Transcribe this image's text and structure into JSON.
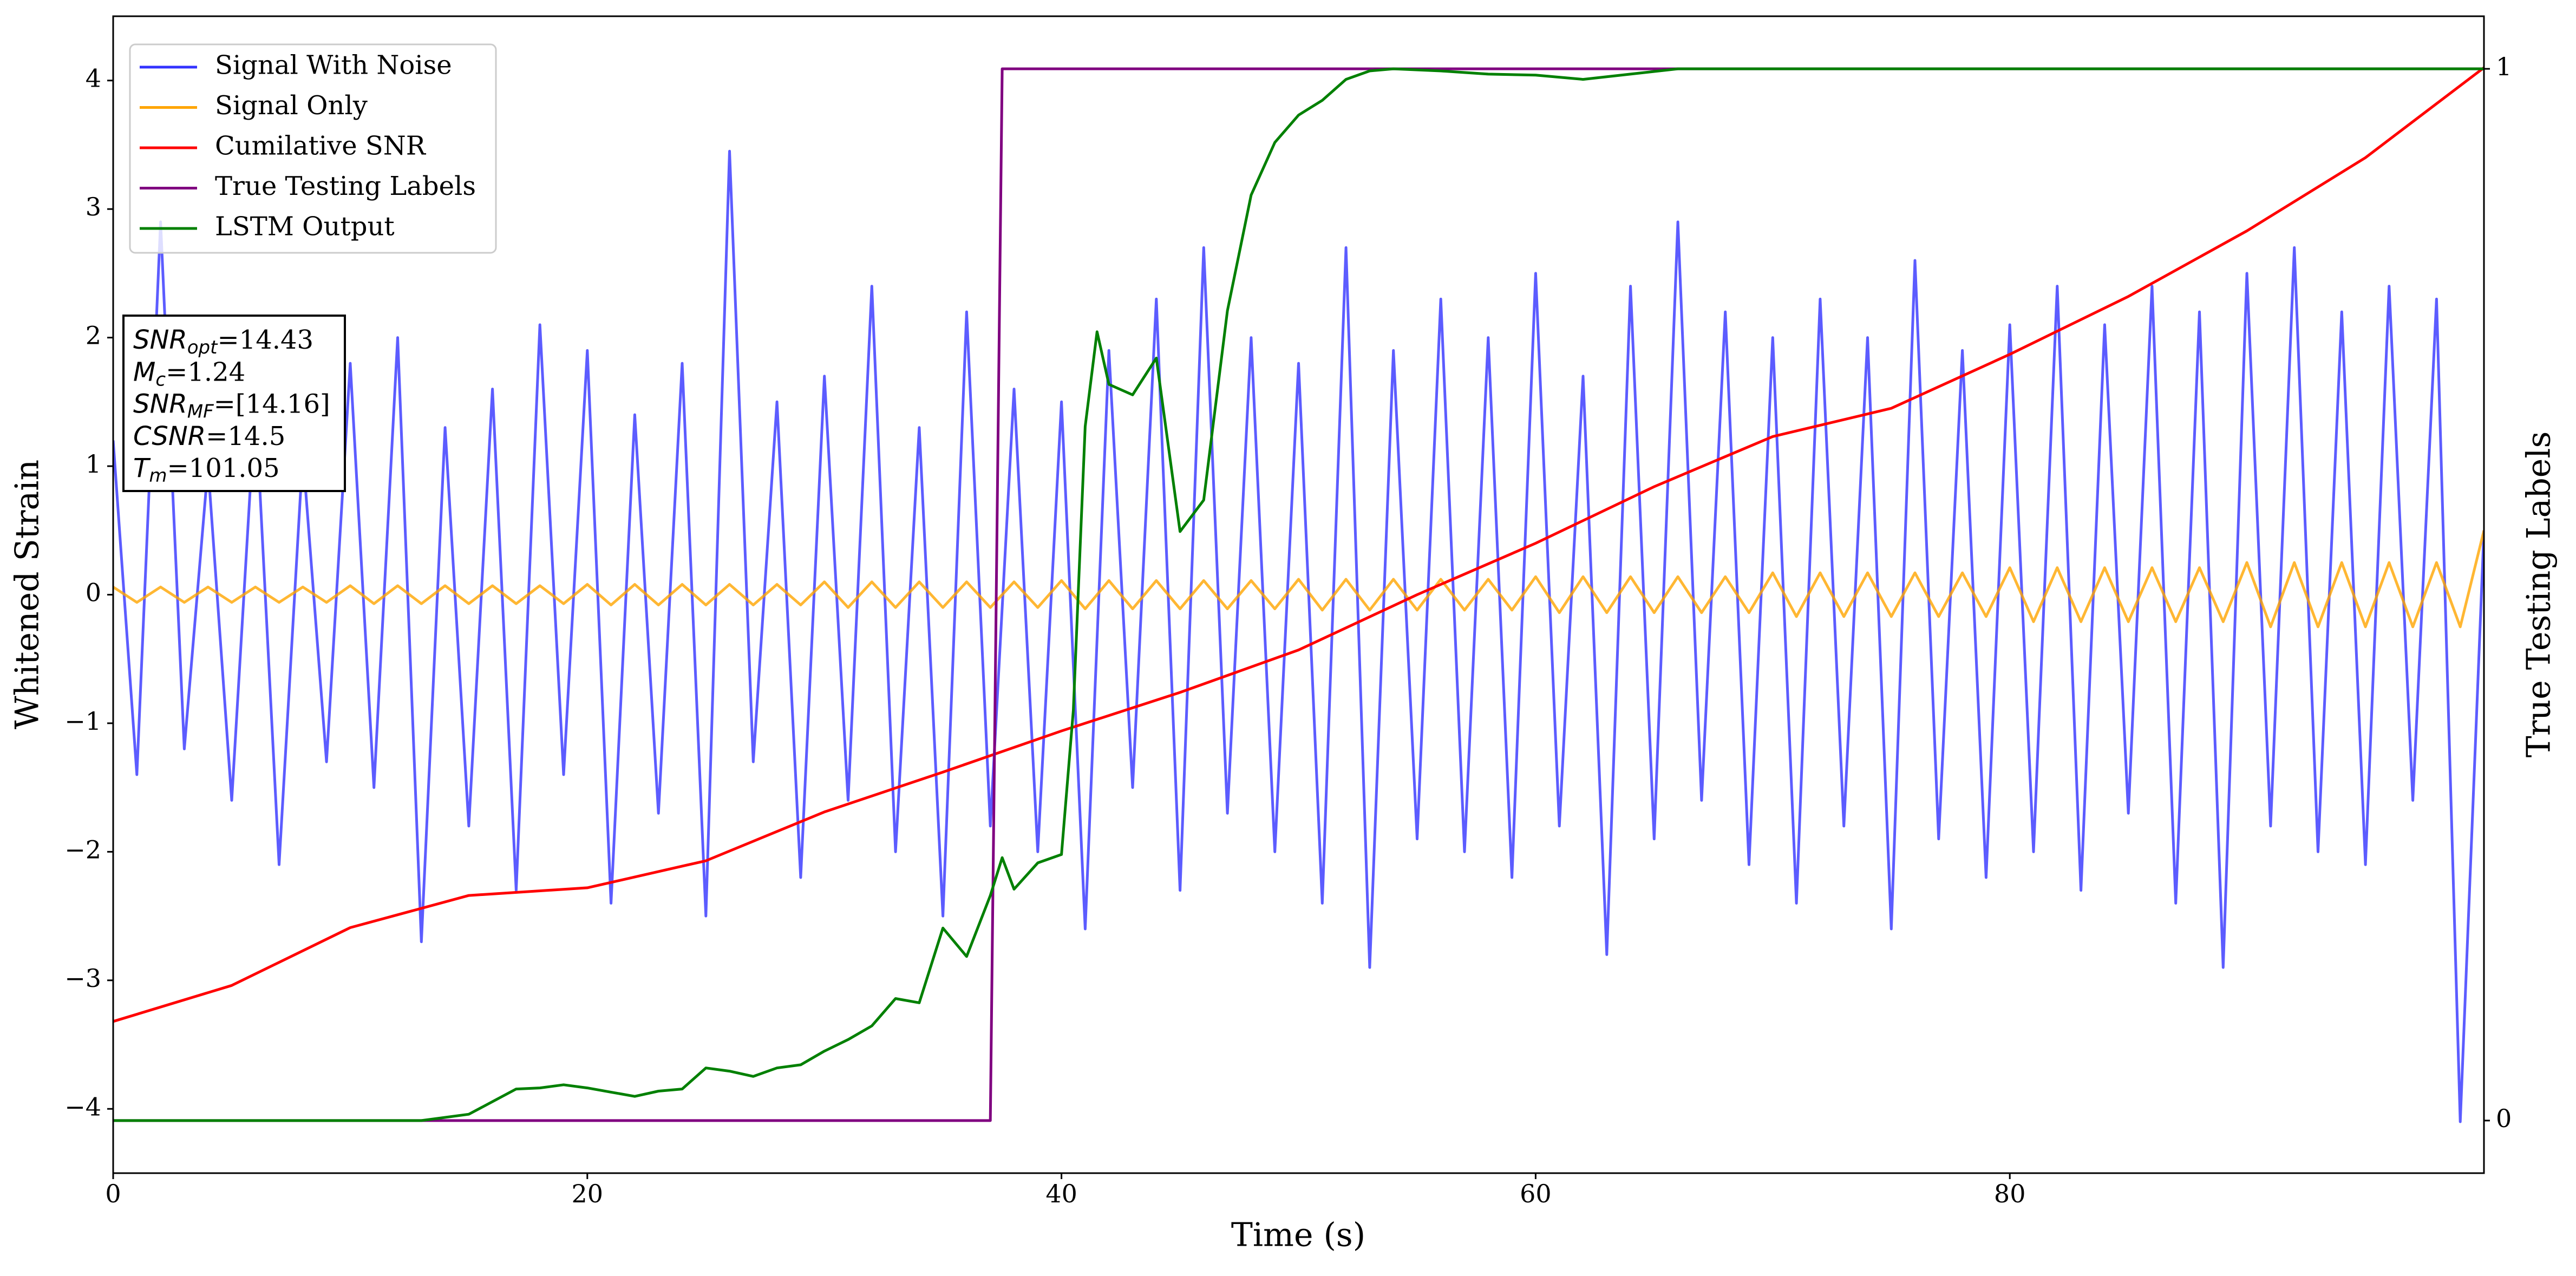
{
  "chart_data": {
    "type": "line",
    "xlabel": "Time (s)",
    "ylabel": "Whitened Strain",
    "y2label": "True Testing Labels",
    "xlim": [
      0,
      100
    ],
    "ylim": [
      -4.5,
      4.5
    ],
    "y2lim": [
      -0.05,
      1.05
    ],
    "xticks": [
      0,
      20,
      40,
      60,
      80
    ],
    "yticks": [
      {
        "value": -4,
        "label": "−4"
      },
      {
        "value": -3,
        "label": "−3"
      },
      {
        "value": -2,
        "label": "−2"
      },
      {
        "value": -1,
        "label": "−1"
      },
      0,
      1,
      2,
      3,
      4
    ],
    "y2ticks": [
      0,
      1
    ],
    "grid": false,
    "legend": "upper left",
    "annotations": [
      {
        "label": "SNR",
        "sub": "opt",
        "text": "=14.43"
      },
      {
        "label": "M",
        "sub": "c",
        "text": "=1.24"
      },
      {
        "label": "SNR",
        "sub": "MF",
        "text": "=[14.16]"
      },
      {
        "label": "CSNR",
        "text": "=14.5"
      },
      {
        "label": "T",
        "sub": "m",
        "text": "=101.05"
      }
    ],
    "series": [
      {
        "name": "Signal With Noise",
        "color": "#3333ff",
        "x": [
          0,
          1,
          2,
          3,
          4,
          5,
          6,
          7,
          8,
          9,
          10,
          11,
          12,
          13,
          14,
          15,
          16,
          17,
          18,
          19,
          20,
          21,
          22,
          23,
          24,
          25,
          26,
          27,
          28,
          29,
          30,
          31,
          32,
          33,
          34,
          35,
          36,
          37,
          38,
          39,
          40,
          41,
          42,
          43,
          44,
          45,
          46,
          47,
          48,
          49,
          50,
          51,
          52,
          53,
          54,
          55,
          56,
          57,
          58,
          59,
          60,
          61,
          62,
          63,
          64,
          65,
          66,
          67,
          68,
          69,
          70,
          71,
          72,
          73,
          74,
          75,
          76,
          77,
          78,
          79,
          80,
          81,
          82,
          83,
          84,
          85,
          86,
          87,
          88,
          89,
          90,
          91,
          92,
          93,
          94,
          95,
          96,
          97,
          98,
          99,
          100
        ],
        "values": [
          1.2,
          -1.4,
          2.9,
          -1.2,
          1.0,
          -1.6,
          1.5,
          -2.1,
          1.1,
          -1.3,
          1.8,
          -1.5,
          2.0,
          -2.7,
          1.3,
          -1.8,
          1.6,
          -2.3,
          2.1,
          -1.4,
          1.9,
          -2.4,
          1.4,
          -1.7,
          1.8,
          -2.5,
          3.45,
          -1.3,
          1.5,
          -2.2,
          1.7,
          -1.6,
          2.4,
          -2.0,
          1.3,
          -2.5,
          2.2,
          -1.8,
          1.6,
          -2.0,
          1.5,
          -2.6,
          1.9,
          -1.5,
          2.3,
          -2.3,
          2.7,
          -1.7,
          2.0,
          -2.0,
          1.8,
          -2.4,
          2.7,
          -2.9,
          1.9,
          -1.9,
          2.3,
          -2.0,
          2.0,
          -2.2,
          2.5,
          -1.8,
          1.7,
          -2.8,
          2.4,
          -1.9,
          2.9,
          -1.6,
          2.2,
          -2.1,
          2.0,
          -2.4,
          2.3,
          -1.8,
          2.0,
          -2.6,
          2.6,
          -1.9,
          1.9,
          -2.2,
          2.1,
          -2.0,
          2.4,
          -2.3,
          2.1,
          -1.7,
          2.4,
          -2.4,
          2.2,
          -2.9,
          2.5,
          -1.8,
          2.7,
          -2.0,
          2.2,
          -2.1,
          2.4,
          -1.6,
          2.3,
          -4.1,
          0.5
        ]
      },
      {
        "name": "Signal Only",
        "color": "#ffa500",
        "x": [
          0,
          1,
          2,
          3,
          4,
          5,
          6,
          7,
          8,
          9,
          10,
          11,
          12,
          13,
          14,
          15,
          16,
          17,
          18,
          19,
          20,
          21,
          22,
          23,
          24,
          25,
          26,
          27,
          28,
          29,
          30,
          31,
          32,
          33,
          34,
          35,
          36,
          37,
          38,
          39,
          40,
          41,
          42,
          43,
          44,
          45,
          46,
          47,
          48,
          49,
          50,
          51,
          52,
          53,
          54,
          55,
          56,
          57,
          58,
          59,
          60,
          61,
          62,
          63,
          64,
          65,
          66,
          67,
          68,
          69,
          70,
          71,
          72,
          73,
          74,
          75,
          76,
          77,
          78,
          79,
          80,
          81,
          82,
          83,
          84,
          85,
          86,
          87,
          88,
          89,
          90,
          91,
          92,
          93,
          94,
          95,
          96,
          97,
          98,
          99,
          100
        ],
        "values": [
          0.06,
          -0.06,
          0.06,
          -0.06,
          0.06,
          -0.06,
          0.06,
          -0.06,
          0.06,
          -0.06,
          0.07,
          -0.07,
          0.07,
          -0.07,
          0.07,
          -0.07,
          0.07,
          -0.07,
          0.07,
          -0.07,
          0.08,
          -0.08,
          0.08,
          -0.08,
          0.08,
          -0.08,
          0.08,
          -0.08,
          0.08,
          -0.08,
          0.1,
          -0.1,
          0.1,
          -0.1,
          0.1,
          -0.1,
          0.1,
          -0.1,
          0.1,
          -0.1,
          0.11,
          -0.11,
          0.11,
          -0.11,
          0.11,
          -0.11,
          0.11,
          -0.11,
          0.11,
          -0.11,
          0.12,
          -0.12,
          0.12,
          -0.12,
          0.12,
          -0.12,
          0.12,
          -0.12,
          0.12,
          -0.12,
          0.14,
          -0.14,
          0.14,
          -0.14,
          0.14,
          -0.14,
          0.14,
          -0.14,
          0.14,
          -0.14,
          0.17,
          -0.17,
          0.17,
          -0.17,
          0.17,
          -0.17,
          0.17,
          -0.17,
          0.17,
          -0.17,
          0.21,
          -0.21,
          0.21,
          -0.21,
          0.21,
          -0.21,
          0.21,
          -0.21,
          0.21,
          -0.21,
          0.25,
          -0.25,
          0.25,
          -0.25,
          0.25,
          -0.25,
          0.25,
          -0.25,
          0.25,
          -0.25,
          0.5
        ]
      },
      {
        "name": "Cumilative SNR",
        "color": "#ff0000",
        "x": [
          0,
          5,
          10,
          15,
          20,
          25,
          30,
          35,
          40,
          45,
          50,
          55,
          60,
          65,
          70,
          75,
          80,
          85,
          90,
          95,
          100
        ],
        "values": [
          -3.32,
          -3.04,
          -2.59,
          -2.34,
          -2.28,
          -2.07,
          -1.69,
          -1.38,
          -1.06,
          -0.76,
          -0.43,
          0,
          0.4,
          0.84,
          1.23,
          1.45,
          1.87,
          2.32,
          2.83,
          3.4,
          4.1
        ]
      },
      {
        "name": "True Testing Labels",
        "color": "#800080",
        "axis": "y2",
        "x": [
          0,
          37.0,
          37.5,
          100
        ],
        "values": [
          0,
          0,
          1,
          1
        ]
      },
      {
        "name": "LSTM Output",
        "color": "#008000",
        "axis": "y2",
        "x": [
          0,
          13,
          15,
          17,
          18,
          19,
          20,
          21,
          22,
          23,
          24,
          25,
          26,
          27,
          28,
          29,
          30,
          31,
          32,
          33,
          34,
          35,
          36,
          37,
          37.5,
          38,
          39,
          40,
          40.5,
          41,
          41.5,
          42,
          43,
          44,
          45,
          46,
          47,
          48,
          49,
          50,
          51,
          52,
          53,
          54,
          56,
          58,
          60,
          62,
          64,
          66,
          70,
          100
        ],
        "values": [
          0,
          0,
          0.006,
          0.03,
          0.031,
          0.034,
          0.031,
          0.027,
          0.023,
          0.028,
          0.03,
          0.05,
          0.047,
          0.042,
          0.05,
          0.053,
          0.066,
          0.077,
          0.09,
          0.116,
          0.112,
          0.183,
          0.156,
          0.214,
          0.25,
          0.22,
          0.245,
          0.253,
          0.39,
          0.66,
          0.75,
          0.7,
          0.69,
          0.725,
          0.56,
          0.59,
          0.77,
          0.88,
          0.93,
          0.956,
          0.97,
          0.99,
          0.998,
          1.0,
          0.998,
          0.995,
          0.994,
          0.99,
          0.995,
          1.0,
          1.0,
          1.0
        ]
      }
    ]
  }
}
